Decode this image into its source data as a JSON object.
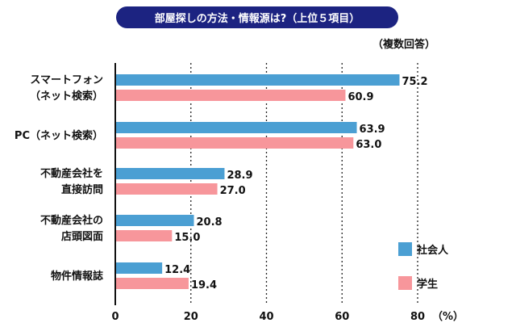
{
  "chart_data": {
    "type": "bar",
    "orientation": "horizontal",
    "title": "部屋探しの方法・情報源は?（上位５項目）",
    "note": "（複数回答）",
    "categories": [
      [
        "スマートフォン",
        "（ネット検索）"
      ],
      [
        "PC（ネット検索）"
      ],
      [
        "不動産会社を",
        "直接訪問"
      ],
      [
        "不動産会社の",
        "店頭図面"
      ],
      [
        "物件情報誌"
      ]
    ],
    "series": [
      {
        "name": "社会人",
        "color": "#4b9fd3",
        "values": [
          75.2,
          63.9,
          28.9,
          20.8,
          12.4
        ]
      },
      {
        "name": "学生",
        "color": "#f7969b",
        "values": [
          60.9,
          63.0,
          27.0,
          15.0,
          19.4
        ]
      }
    ],
    "xlim": [
      0,
      80
    ],
    "xticks": [
      "0",
      "20",
      "40",
      "60",
      "80"
    ],
    "xunit": "（%）",
    "grid": "dotted vertical",
    "legend": "bottom-right"
  }
}
